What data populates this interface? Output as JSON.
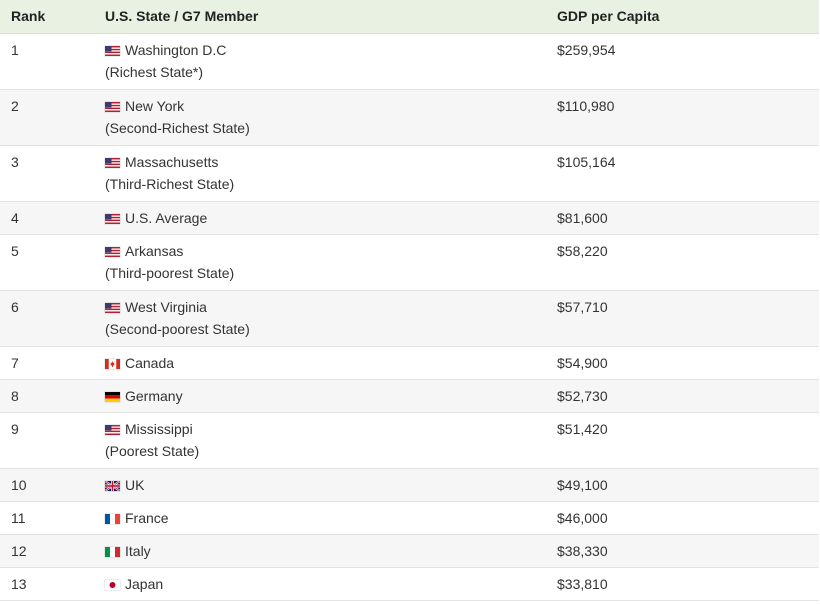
{
  "headers": {
    "rank": "Rank",
    "name": "U.S. State / G7 Member",
    "gdp": "GDP per Capita"
  },
  "rows": [
    {
      "rank": "1",
      "flag": "us-flag-icon",
      "name": "Washington D.C",
      "note": "(Richest State*)",
      "gdp": "$259,954"
    },
    {
      "rank": "2",
      "flag": "us-flag-icon",
      "name": "New York",
      "note": "(Second-Richest State)",
      "gdp": "$110,980"
    },
    {
      "rank": "3",
      "flag": "us-flag-icon",
      "name": "Massachusetts",
      "note": "(Third-Richest State)",
      "gdp": "$105,164"
    },
    {
      "rank": "4",
      "flag": "us-flag-icon",
      "name": "U.S. Average",
      "note": "",
      "gdp": "$81,600"
    },
    {
      "rank": "5",
      "flag": "us-flag-icon",
      "name": "Arkansas",
      "note": "(Third-poorest State)",
      "gdp": "$58,220"
    },
    {
      "rank": "6",
      "flag": "us-flag-icon",
      "name": "West Virginia",
      "note": "(Second-poorest State)",
      "gdp": "$57,710"
    },
    {
      "rank": "7",
      "flag": "canada-flag-icon",
      "name": "Canada",
      "note": "",
      "gdp": "$54,900"
    },
    {
      "rank": "8",
      "flag": "germany-flag-icon",
      "name": "Germany",
      "note": "",
      "gdp": "$52,730"
    },
    {
      "rank": "9",
      "flag": "us-flag-icon",
      "name": "Mississippi",
      "note": "(Poorest State)",
      "gdp": "$51,420"
    },
    {
      "rank": "10",
      "flag": "uk-flag-icon",
      "name": "UK",
      "note": "",
      "gdp": "$49,100"
    },
    {
      "rank": "11",
      "flag": "france-flag-icon",
      "name": "France",
      "note": "",
      "gdp": "$46,000"
    },
    {
      "rank": "12",
      "flag": "italy-flag-icon",
      "name": "Italy",
      "note": "",
      "gdp": "$38,330"
    },
    {
      "rank": "13",
      "flag": "japan-flag-icon",
      "name": "Japan",
      "note": "",
      "gdp": "$33,810"
    }
  ],
  "colors": {
    "header_bg": "#e9f1e2",
    "stripe_bg": "#f6f6f6",
    "text": "#333333"
  }
}
